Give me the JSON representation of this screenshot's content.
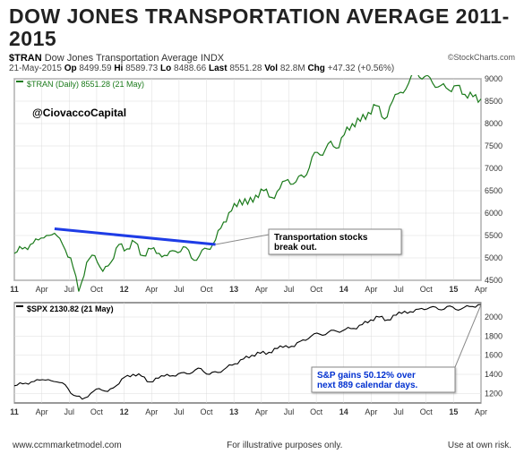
{
  "title": "DOW JONES TRANSPORTATION AVERAGE 2011-2015",
  "ticker_symbol": "$TRAN",
  "ticker_name": "Dow Jones Transportation Average",
  "ticker_type": "INDX",
  "source": "©StockCharts.com",
  "date": "21-May-2015",
  "ohlc": {
    "op": "8499.59",
    "hi": "8589.73",
    "lo": "8488.66",
    "last": "8551.28",
    "vol": "82.8M",
    "chg": "+47.32 (+0.56%)"
  },
  "chart_top": {
    "label": "$TRAN (Daily) 8551.28 (21 May)",
    "series_color": "#1a7a1a",
    "handle": "@CiovaccoCapital",
    "y_ticks": [
      4500,
      5000,
      5500,
      6000,
      6500,
      7000,
      7500,
      8000,
      8500,
      9000
    ],
    "x_labels": [
      "11",
      "Apr",
      "Jul",
      "Oct",
      "12",
      "Apr",
      "Jul",
      "Oct",
      "13",
      "Apr",
      "Jul",
      "Oct",
      "14",
      "Apr",
      "Jul",
      "Oct",
      "15",
      "Apr"
    ],
    "trendline_color": "#1e3ce6",
    "callout_text": [
      "Transportation stocks",
      "break out."
    ],
    "values": [
      5100,
      5200,
      5300,
      5400,
      5500,
      5550,
      5300,
      5000,
      4250,
      4900,
      5050,
      4700,
      4900,
      5300,
      5200,
      5350,
      5050,
      5200,
      5100,
      5050,
      5150,
      5250,
      5000,
      5050,
      5200,
      5400,
      5800,
      6050,
      6300,
      6200,
      6400,
      6500,
      6350,
      6550,
      6750,
      6700,
      6800,
      7250,
      7300,
      7550,
      7450,
      7750,
      8000,
      8050,
      8250,
      8400,
      8100,
      8500,
      8700,
      8900,
      9150,
      9050,
      8900,
      8850,
      8750,
      8850,
      8650,
      8600,
      8550
    ]
  },
  "chart_bottom": {
    "label": "$SPX 2130.82 (21 May)",
    "series_color": "#000000",
    "y_ticks": [
      1200,
      1400,
      1600,
      1800,
      2000
    ],
    "x_labels": [
      "11",
      "Apr",
      "Jul",
      "Oct",
      "12",
      "Apr",
      "Jul",
      "Oct",
      "13",
      "Apr",
      "Jul",
      "Oct",
      "14",
      "Apr",
      "Jul",
      "Oct",
      "15",
      "Apr"
    ],
    "callout_text": [
      "S&P gains 50.12% over",
      "next 889 calendar days."
    ],
    "callout_color": "#0030d0",
    "values": [
      1280,
      1300,
      1320,
      1340,
      1345,
      1320,
      1290,
      1180,
      1140,
      1200,
      1250,
      1220,
      1280,
      1370,
      1400,
      1380,
      1320,
      1360,
      1400,
      1380,
      1420,
      1420,
      1460,
      1400,
      1420,
      1470,
      1510,
      1560,
      1600,
      1620,
      1630,
      1670,
      1700,
      1690,
      1760,
      1800,
      1820,
      1840,
      1850,
      1870,
      1880,
      1920,
      1970,
      2000,
      1970,
      2020,
      2060,
      2050,
      2090,
      2100,
      2080,
      2110,
      2080,
      2100,
      2110,
      2130
    ]
  },
  "footer": {
    "left": "www.ccmmarketmodel.com",
    "center": "For illustrative purposes only.",
    "right": "Use at own risk."
  },
  "colors": {
    "grid": "#dcdcdc",
    "border": "#333333",
    "text": "#333333",
    "callout_bg": "#ffffff",
    "callout_border": "#888888"
  }
}
